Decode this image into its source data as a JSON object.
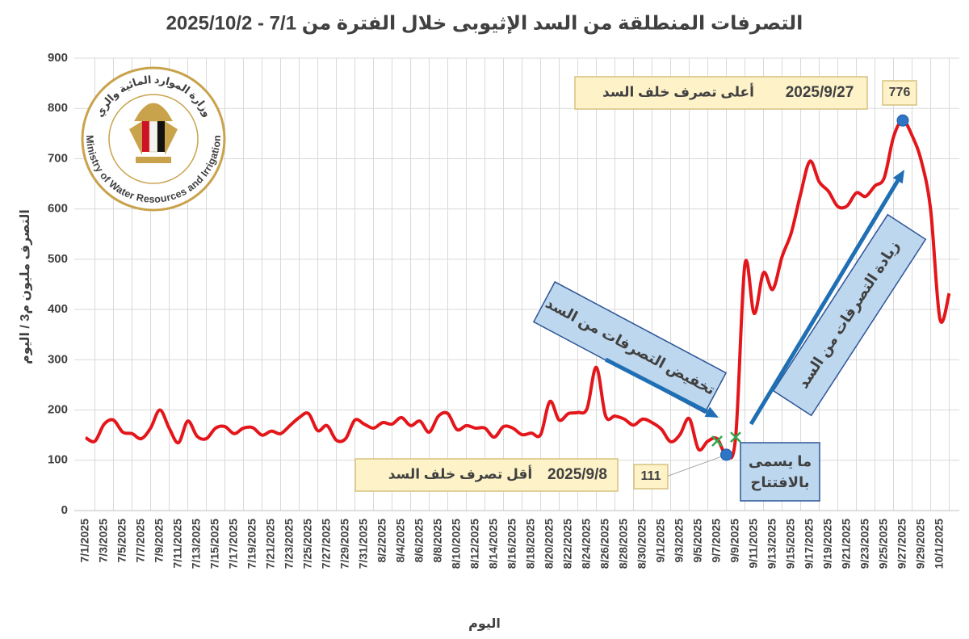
{
  "chart_data": {
    "type": "line",
    "title": "التصرفات المنطلقة من السد الإثيوبى خلال الفترة من 7/1 - 2025/10/2",
    "y_label": "التصرف مليون م3 / اليوم",
    "x_label": "اليوم",
    "categories": [
      "7/1/2025",
      null,
      "7/3/2025",
      null,
      "7/5/2025",
      null,
      "7/7/2025",
      null,
      "7/9/2025",
      null,
      "7/11/2025",
      null,
      "7/13/2025",
      null,
      "7/15/2025",
      null,
      "7/17/2025",
      null,
      "7/19/2025",
      null,
      "7/21/2025",
      null,
      "7/23/2025",
      null,
      "7/25/2025",
      null,
      "7/27/2025",
      null,
      "7/29/2025",
      null,
      "7/31/2025",
      null,
      "8/2/2025",
      null,
      "8/4/2025",
      null,
      "8/6/2025",
      null,
      "8/8/2025",
      null,
      "8/10/2025",
      null,
      "8/12/2025",
      null,
      "8/14/2025",
      null,
      "8/16/2025",
      null,
      "8/18/2025",
      null,
      "8/20/2025",
      null,
      "8/22/2025",
      null,
      "8/24/2025",
      null,
      "8/26/2025",
      null,
      "8/28/2025",
      null,
      "8/30/2025",
      null,
      "9/1/2025",
      null,
      "9/3/2025",
      null,
      "9/5/2025",
      null,
      "9/7/2025",
      null,
      "9/9/2025",
      null,
      "9/11/2025",
      null,
      "9/13/2025",
      null,
      "9/15/2025",
      null,
      "9/17/2025",
      null,
      "9/19/2025",
      null,
      "9/21/2025",
      null,
      "9/23/2025",
      null,
      "9/25/2025",
      null,
      "9/27/2025",
      null,
      "9/29/2025",
      null,
      "10/1/2025",
      null
    ],
    "series": [
      {
        "name": "التصرف",
        "color": "#e3161b",
        "values": [
          145,
          138,
          172,
          180,
          156,
          153,
          143,
          164,
          200,
          164,
          135,
          178,
          148,
          143,
          164,
          167,
          153,
          164,
          165,
          150,
          158,
          153,
          169,
          185,
          193,
          159,
          169,
          140,
          143,
          180,
          172,
          164,
          175,
          172,
          185,
          169,
          178,
          156,
          188,
          193,
          161,
          169,
          164,
          164,
          146,
          167,
          164,
          151,
          154,
          151,
          217,
          180,
          193,
          195,
          203,
          285,
          188,
          188,
          182,
          170,
          182,
          175,
          162,
          137,
          151,
          183,
          122,
          138,
          143,
          111,
          146,
          490,
          392,
          473,
          440,
          505,
          553,
          630,
          695,
          654,
          635,
          605,
          606,
          632,
          625,
          646,
          662,
          743,
          776,
          746,
          695,
          598,
          381,
          432
        ]
      }
    ],
    "ylim": [
      0,
      900
    ],
    "yticks": [
      0,
      100,
      200,
      300,
      400,
      500,
      600,
      700,
      800,
      900
    ],
    "grid": true,
    "annotations": {
      "max_date": "2025/9/27",
      "max_text": "أعلى تصرف خلف السد",
      "min_date": "2025/9/8",
      "min_text": "أقل تصرف خلف السد",
      "opening_line1": "ما يسمى",
      "opening_line2": "بالافتتاح",
      "decrease": "تخفيض التصرفات من السد",
      "increase": "زيادة التصرفات من السد"
    }
  },
  "logo": {
    "arabic": "وزارة الموارد المائية والري",
    "english": "Ministry of Water Resources and Irrigation"
  }
}
